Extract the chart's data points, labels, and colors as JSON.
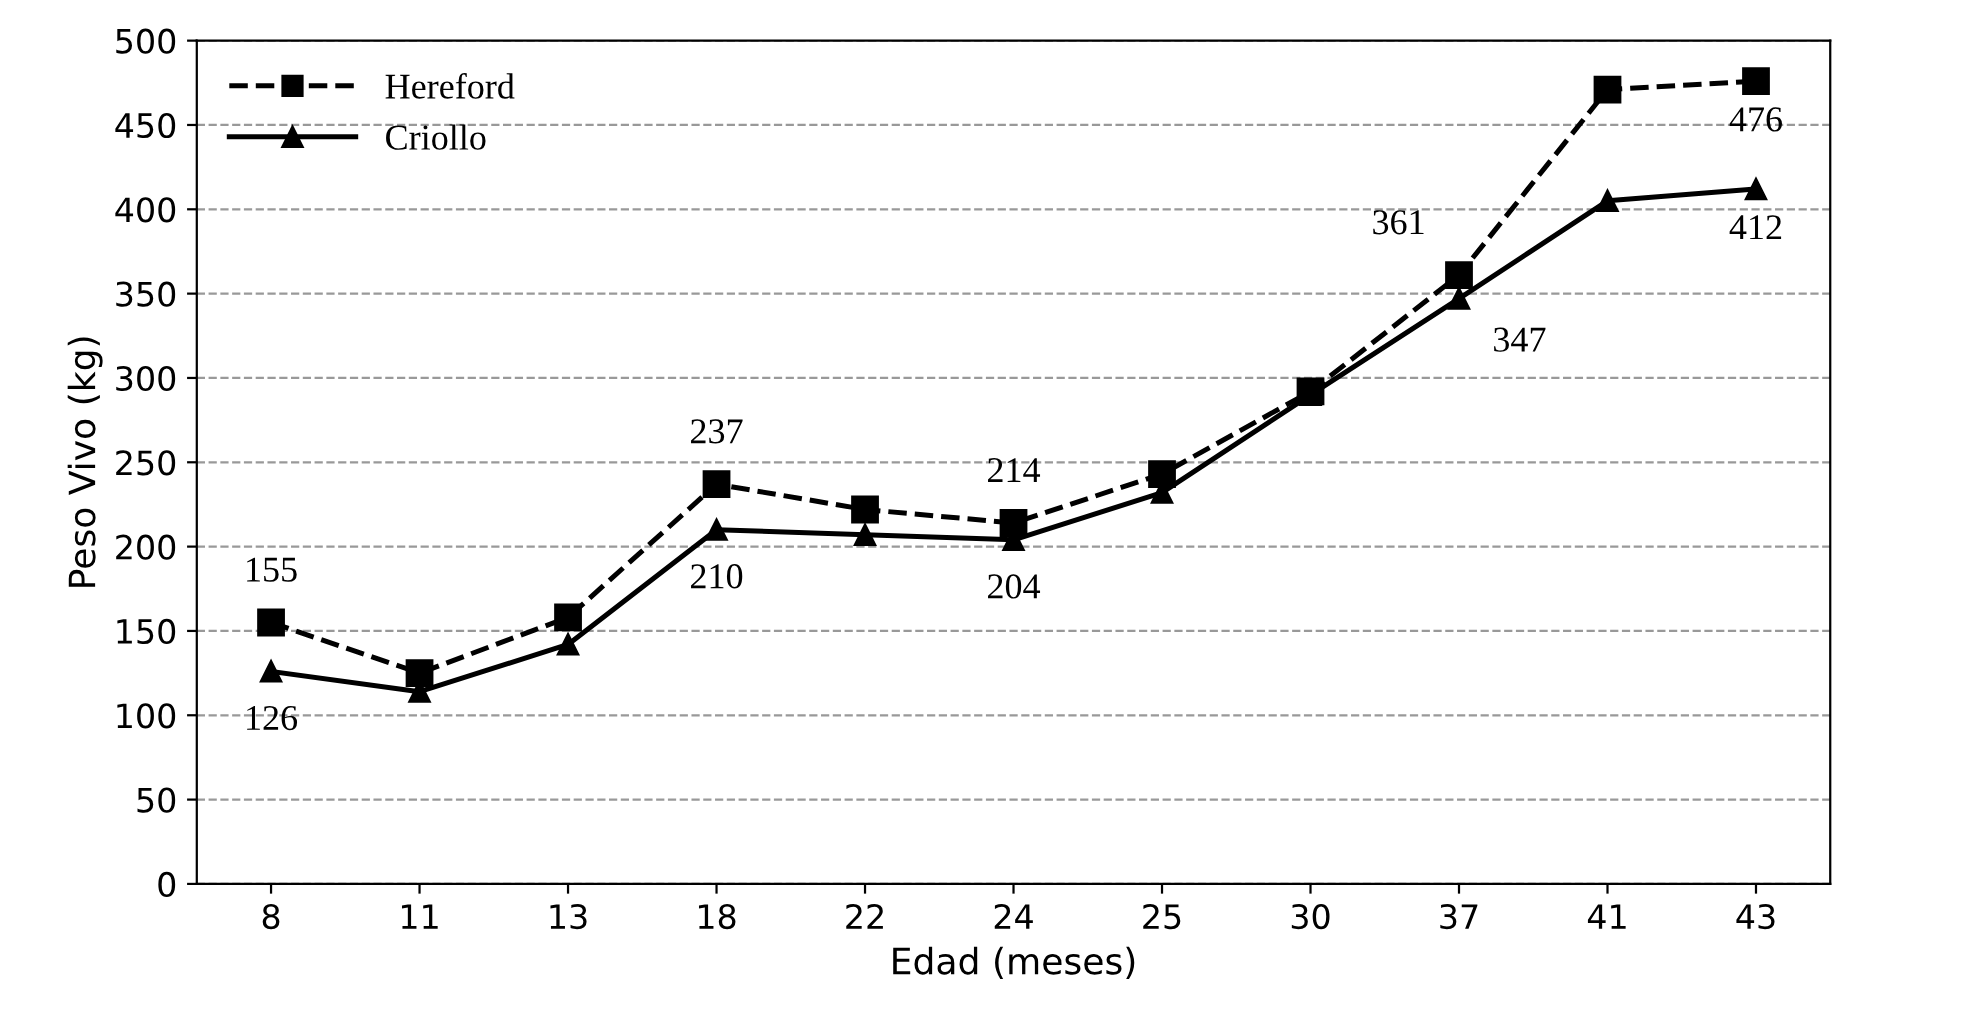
{
  "chart_data": {
    "type": "line",
    "xlabel": "Edad (meses)",
    "ylabel": "Peso Vivo (kg)",
    "categories": [
      "8",
      "11",
      "13",
      "18",
      "22",
      "24",
      "25",
      "30",
      "37",
      "41",
      "43"
    ],
    "series": [
      {
        "name": "Hereford",
        "color": "#000000",
        "marker": "square",
        "line_style": "dashed",
        "values": [
          155,
          125,
          158,
          237,
          222,
          214,
          243,
          292,
          361,
          471,
          476
        ],
        "value_labels": [
          "155",
          null,
          null,
          "237",
          null,
          "214",
          null,
          null,
          "361",
          null,
          "476"
        ]
      },
      {
        "name": "Criollo",
        "color": "#000000",
        "marker": "triangle",
        "line_style": "solid",
        "values": [
          126,
          114,
          142,
          210,
          207,
          204,
          232,
          290,
          347,
          405,
          412
        ],
        "value_labels": [
          "126",
          null,
          null,
          "210",
          null,
          "204",
          null,
          null,
          "347",
          null,
          "412"
        ]
      }
    ],
    "ylim": [
      0,
      500
    ],
    "yticks": [
      0,
      50,
      100,
      150,
      200,
      250,
      300,
      350,
      400,
      450,
      500
    ],
    "grid": "y",
    "legend": "top left"
  }
}
